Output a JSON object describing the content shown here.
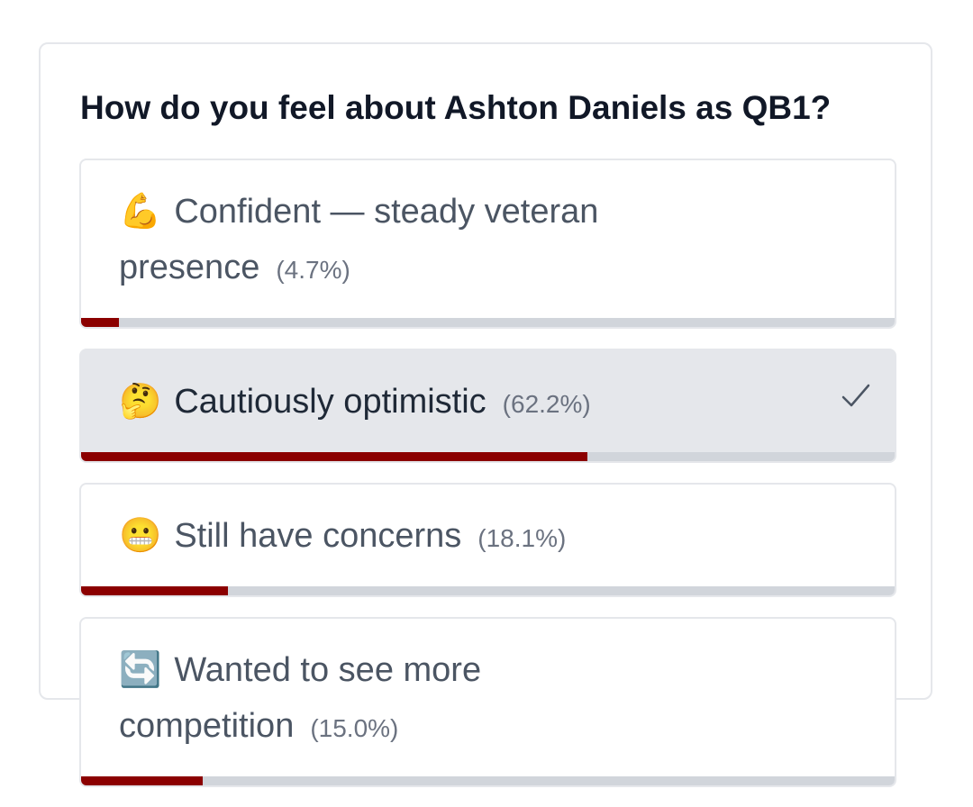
{
  "title": "How do you feel about Ashton Daniels as QB1?",
  "options": [
    {
      "emoji": "💪",
      "label": "Confident — steady veteran presence",
      "percent": 4.7,
      "percent_label": "(4.7%)",
      "selected": false
    },
    {
      "emoji": "🤔",
      "label": "Cautiously optimistic",
      "percent": 62.2,
      "percent_label": "(62.2%)",
      "selected": true
    },
    {
      "emoji": "😬",
      "label": "Still have concerns",
      "percent": 18.1,
      "percent_label": "(18.1%)",
      "selected": false
    },
    {
      "emoji": "🔄",
      "label": "Wanted to see more competition",
      "percent": 15.0,
      "percent_label": "(15.0%)",
      "selected": false
    }
  ],
  "bar_color": "#8b0000"
}
